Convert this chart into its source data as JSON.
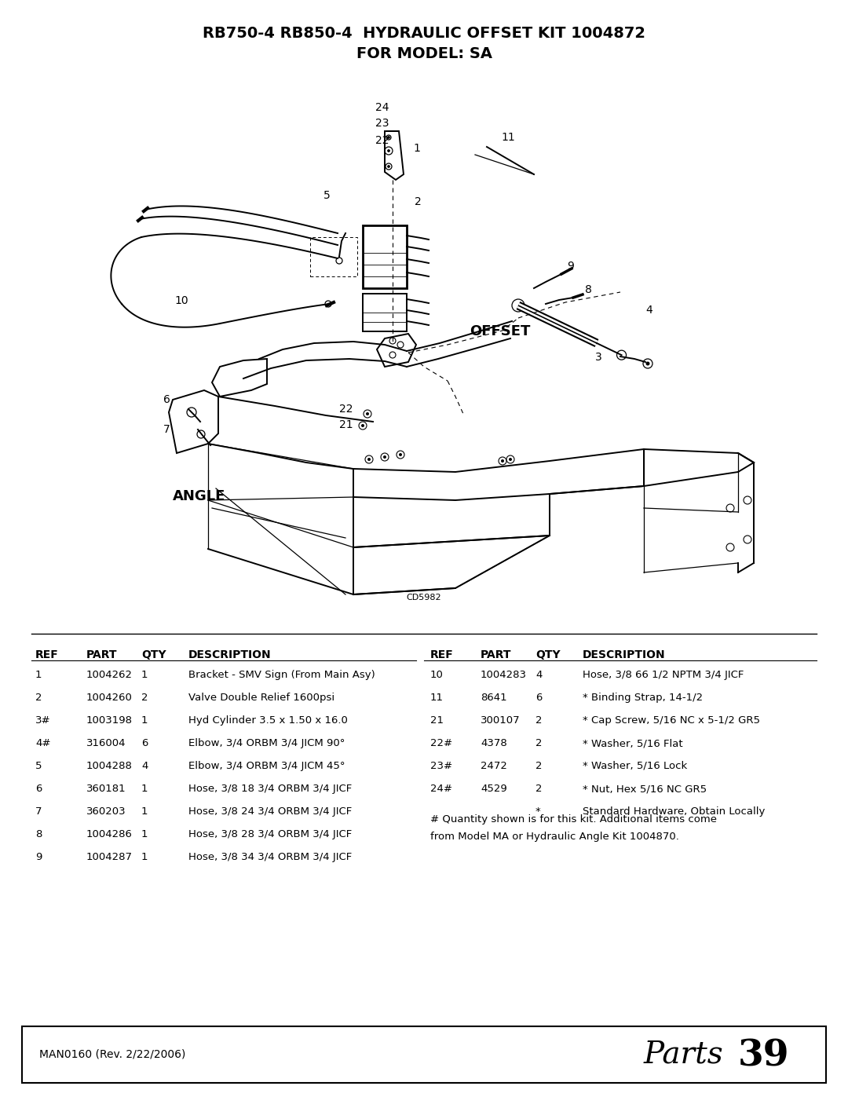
{
  "title_line1": "RB750-4 RB850-4  HYDRAULIC OFFSET KIT 1004872",
  "title_line2": "FOR MODEL: SA",
  "bg_color": "#ffffff",
  "text_color": "#000000",
  "footer_left": "MAN0160 (Rev. 2/22/2006)",
  "footer_right_italic": "Parts ",
  "footer_right_bold": "39",
  "diagram_code": "CD5982",
  "table_left": [
    {
      "ref": "1",
      "part": "1004262",
      "qty": "1",
      "desc": "Bracket - SMV Sign (From Main Asy)"
    },
    {
      "ref": "2",
      "part": "1004260",
      "qty": "2",
      "desc": "Valve Double Relief 1600psi"
    },
    {
      "ref": "3#",
      "part": "1003198",
      "qty": "1",
      "desc": "Hyd Cylinder 3.5 x 1.50 x 16.0"
    },
    {
      "ref": "4#",
      "part": "316004",
      "qty": "6",
      "desc": "Elbow, 3/4 ORBM 3/4 JICM 90°"
    },
    {
      "ref": "5",
      "part": "1004288",
      "qty": "4",
      "desc": "Elbow, 3/4 ORBM 3/4 JICM 45°"
    },
    {
      "ref": "6",
      "part": "360181",
      "qty": "1",
      "desc": "Hose, 3/8 18 3/4 ORBM 3/4 JICF"
    },
    {
      "ref": "7",
      "part": "360203",
      "qty": "1",
      "desc": "Hose, 3/8 24 3/4 ORBM 3/4 JICF"
    },
    {
      "ref": "8",
      "part": "1004286",
      "qty": "1",
      "desc": "Hose, 3/8 28 3/4 ORBM 3/4 JICF"
    },
    {
      "ref": "9",
      "part": "1004287",
      "qty": "1",
      "desc": "Hose, 3/8 34 3/4 ORBM 3/4 JICF"
    }
  ],
  "table_right": [
    {
      "ref": "10",
      "part": "1004283",
      "qty": "4",
      "desc": "Hose, 3/8 66 1/2 NPTM 3/4 JICF"
    },
    {
      "ref": "11",
      "part": "8641",
      "qty": "6",
      "desc": "* Binding Strap, 14-1/2"
    },
    {
      "ref": "21",
      "part": "300107",
      "qty": "2",
      "desc": "* Cap Screw, 5/16 NC x 5-1/2 GR5"
    },
    {
      "ref": "22#",
      "part": "4378",
      "qty": "2",
      "desc": "* Washer, 5/16 Flat"
    },
    {
      "ref": "23#",
      "part": "2472",
      "qty": "2",
      "desc": "* Washer, 5/16 Lock"
    },
    {
      "ref": "24#",
      "part": "4529",
      "qty": "2",
      "desc": "* Nut, Hex 5/16 NC GR5"
    },
    {
      "ref": "*",
      "part": "",
      "qty": "",
      "desc": "Standard Hardware, Obtain Locally"
    }
  ],
  "footnote1": "# Quantity shown is for this kit. Additional items come",
  "footnote2": "from Model MA or Hydraulic Angle Kit 1004870."
}
